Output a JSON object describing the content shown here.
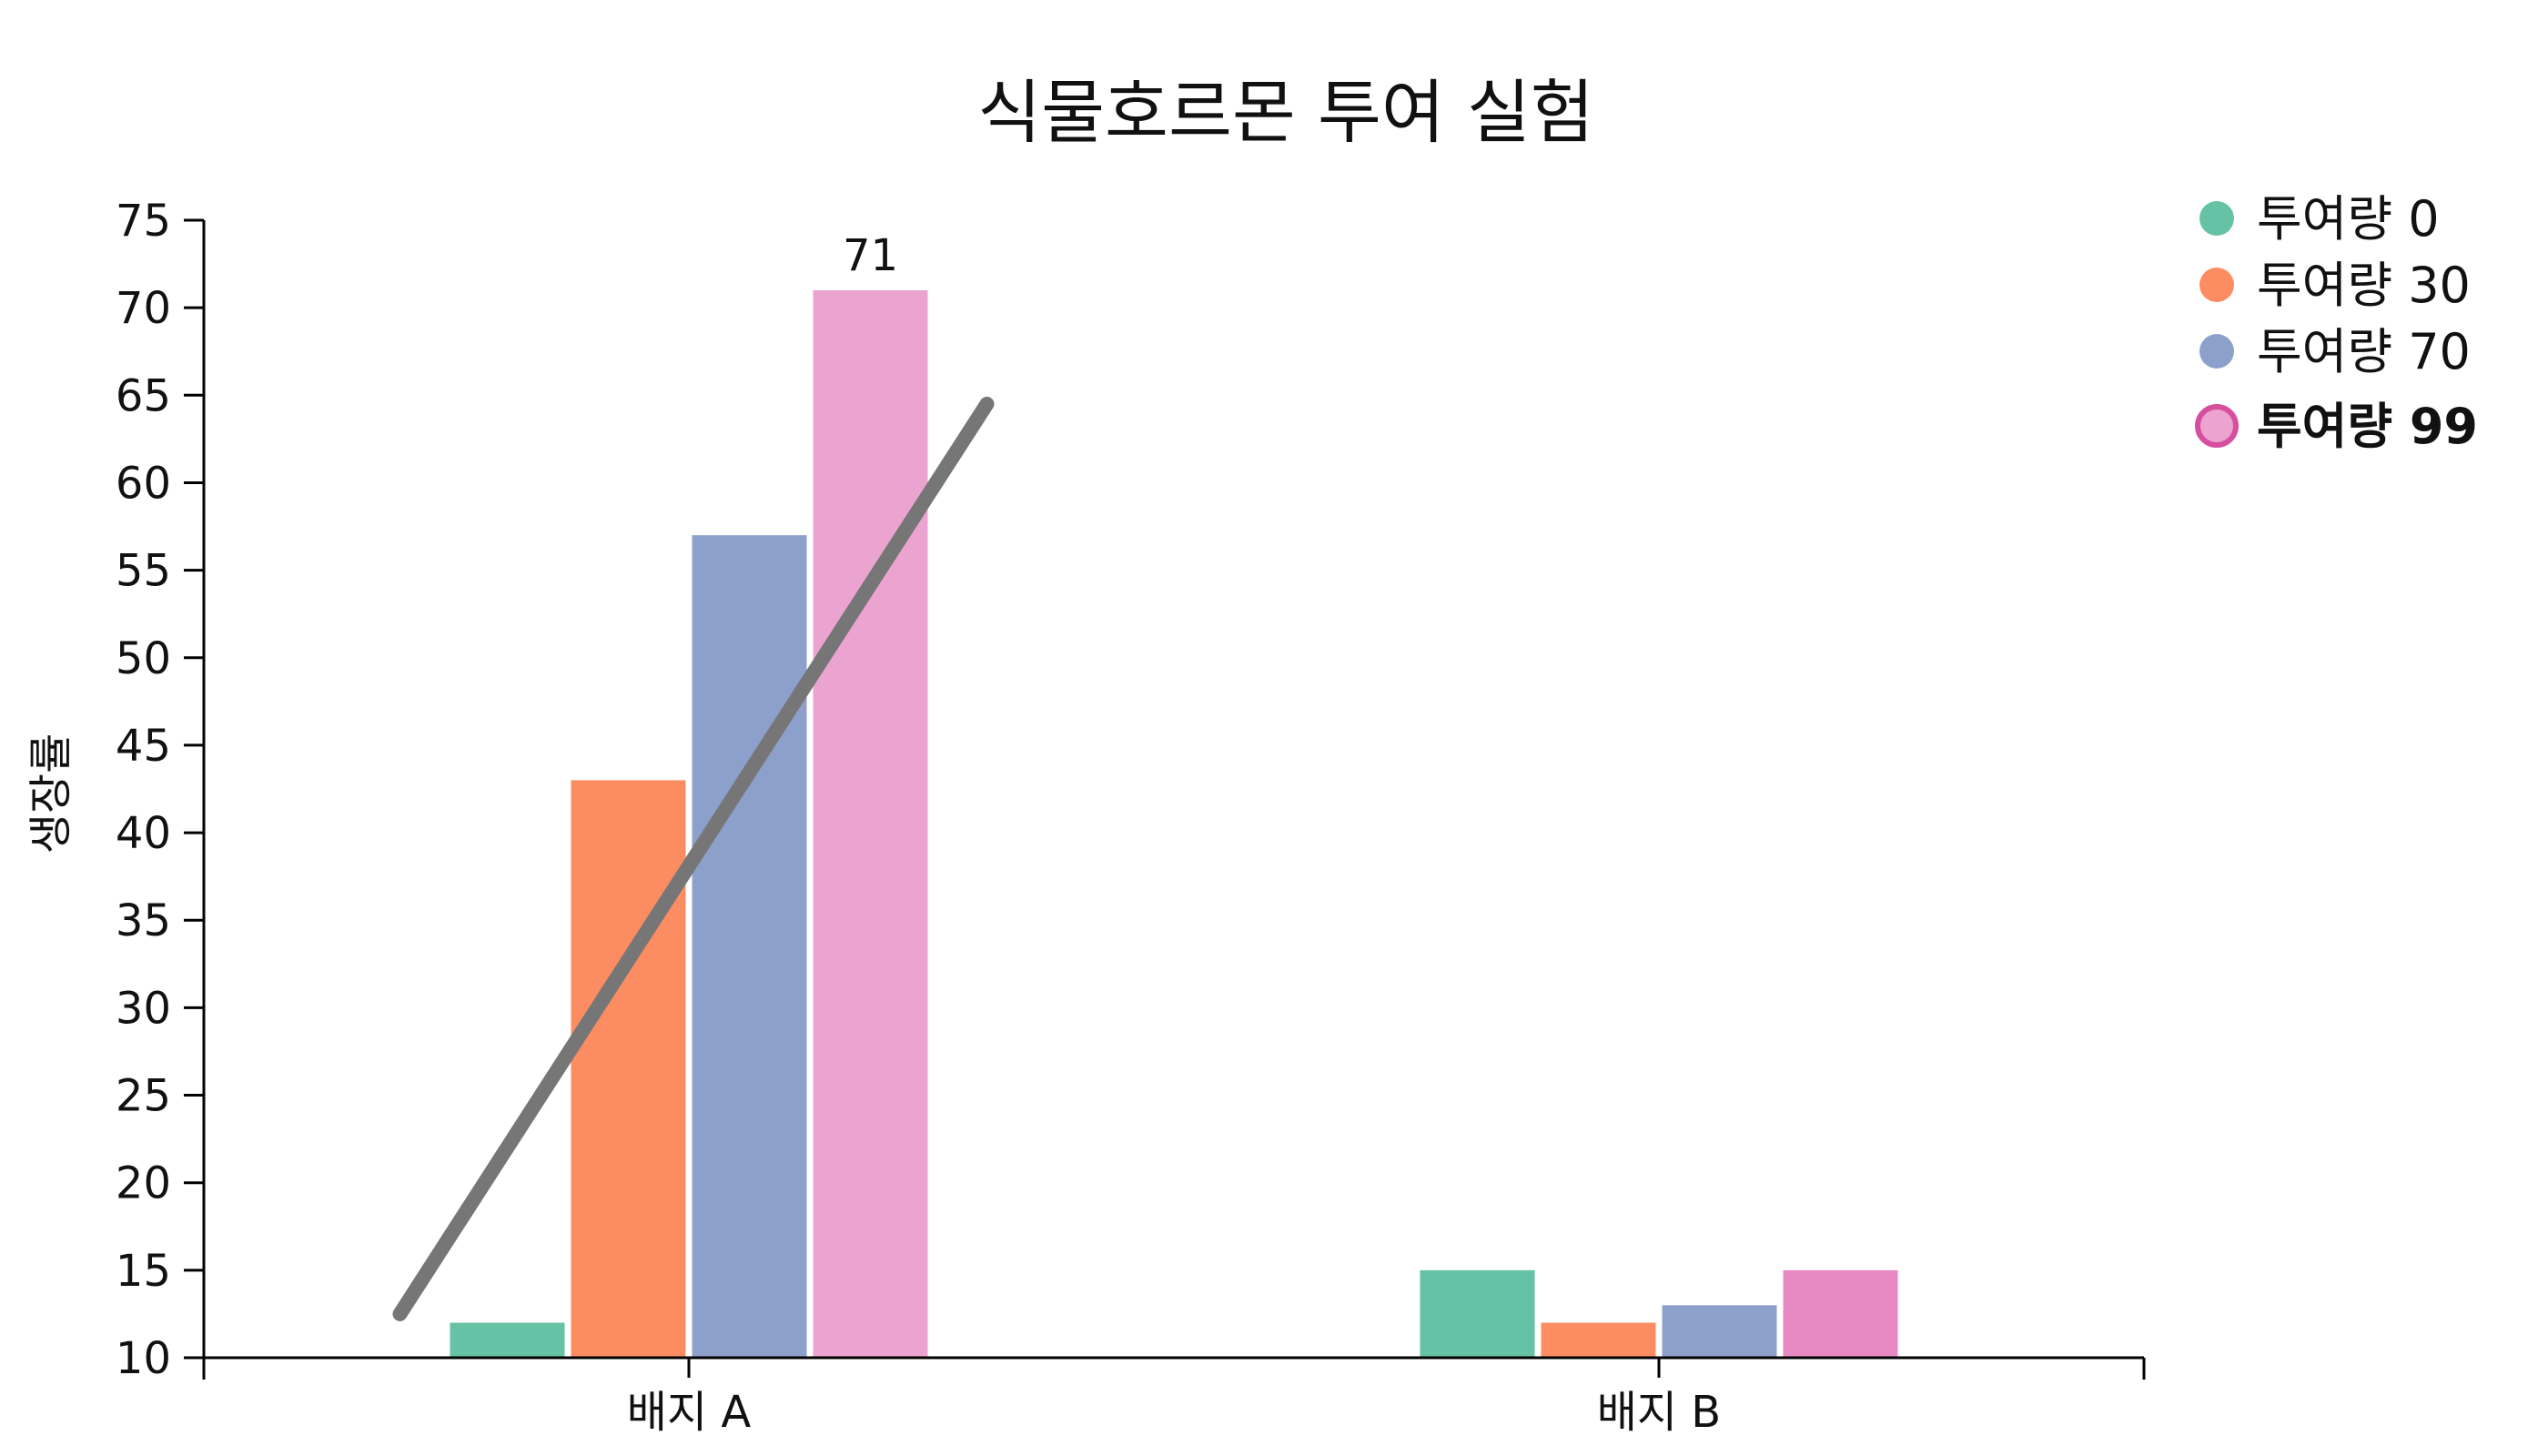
{
  "chart_data": {
    "type": "bar",
    "title": "식물호르몬 투여 실험",
    "xlabel": "",
    "ylabel": "생장률",
    "categories": [
      "배지 A",
      "배지 B"
    ],
    "ylim": [
      10,
      75
    ],
    "yticks": [
      10,
      15,
      20,
      25,
      30,
      35,
      40,
      45,
      50,
      55,
      60,
      65,
      70,
      75
    ],
    "grid": false,
    "legend_position": "top-right",
    "highlighted_series": "투여량 99",
    "series": [
      {
        "name": "투여량 0",
        "values": [
          12,
          15
        ],
        "color": "#66c2a5"
      },
      {
        "name": "투여량 30",
        "values": [
          43,
          12
        ],
        "color": "#fc8d62"
      },
      {
        "name": "투여량 70",
        "values": [
          57,
          13
        ],
        "color": "#8da0cb"
      },
      {
        "name": "투여량 99",
        "values": [
          71,
          15
        ],
        "color": "#e78ac3"
      }
    ],
    "data_labels": [
      {
        "series": "투여량 99",
        "category": "배지 A",
        "text": "71"
      }
    ],
    "trend_line": {
      "category": "배지 A",
      "start": 12.5,
      "end": 64.5,
      "color": "#767676"
    }
  }
}
